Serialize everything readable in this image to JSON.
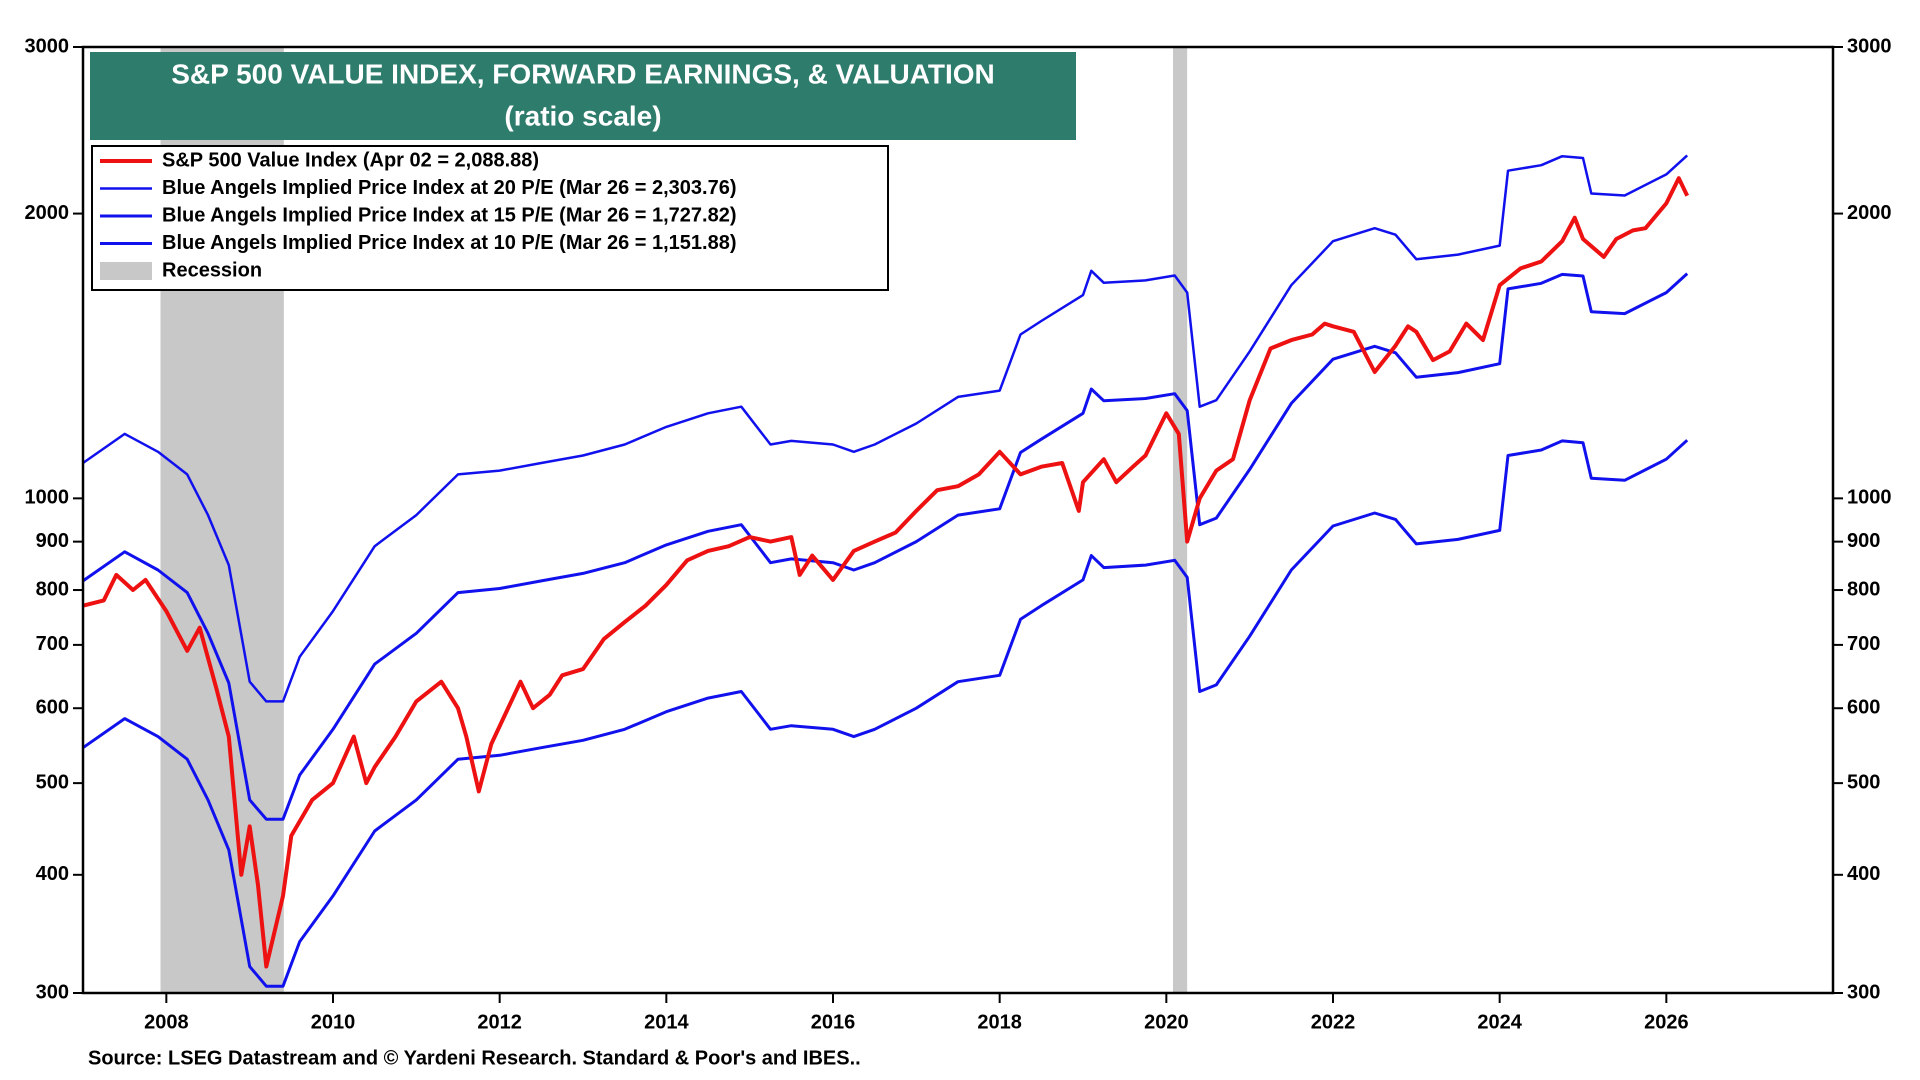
{
  "chart_data": {
    "type": "line",
    "title": "S&P 500 VALUE INDEX, FORWARD EARNINGS, & VALUATION",
    "subtitle": "(ratio scale)",
    "source": "Source: LSEG Datastream and © Yardeni Research. Standard & Poor's and IBES..",
    "log_scale": true,
    "xlim": [
      2007,
      2028
    ],
    "xticks": [
      2008,
      2010,
      2012,
      2014,
      2016,
      2018,
      2020,
      2022,
      2024,
      2026
    ],
    "ylim": [
      300,
      3000
    ],
    "yticks": [
      300,
      400,
      500,
      600,
      700,
      800,
      900,
      1000,
      2000,
      3000
    ],
    "recession": {
      "label": "Recession",
      "color": "#c8c8c8",
      "periods": [
        [
          2007.93,
          2009.41
        ],
        [
          2020.08,
          2020.25
        ]
      ]
    },
    "series": [
      {
        "name": "S&P 500 Value Index (Apr 02 = 2,088.88)",
        "color": "#ee1111",
        "width": 4,
        "x": [
          2007.0,
          2007.25,
          2007.4,
          2007.6,
          2007.75,
          2008.0,
          2008.25,
          2008.4,
          2008.6,
          2008.75,
          2008.9,
          2009.0,
          2009.1,
          2009.2,
          2009.4,
          2009.5,
          2009.75,
          2010.0,
          2010.25,
          2010.4,
          2010.5,
          2010.75,
          2011.0,
          2011.3,
          2011.5,
          2011.6,
          2011.75,
          2011.9,
          2012.25,
          2012.4,
          2012.6,
          2012.75,
          2013.0,
          2013.25,
          2013.5,
          2013.75,
          2014.0,
          2014.25,
          2014.5,
          2014.75,
          2015.0,
          2015.25,
          2015.5,
          2015.6,
          2015.75,
          2016.0,
          2016.25,
          2016.5,
          2016.75,
          2017.0,
          2017.25,
          2017.5,
          2017.75,
          2018.0,
          2018.25,
          2018.5,
          2018.75,
          2018.95,
          2019.0,
          2019.25,
          2019.4,
          2019.6,
          2019.75,
          2020.0,
          2020.15,
          2020.25,
          2020.4,
          2020.6,
          2020.8,
          2021.0,
          2021.25,
          2021.5,
          2021.75,
          2021.9,
          2022.0,
          2022.25,
          2022.5,
          2022.75,
          2022.9,
          2023.0,
          2023.2,
          2023.4,
          2023.6,
          2023.8,
          2024.0,
          2024.25,
          2024.5,
          2024.75,
          2024.9,
          2025.0,
          2025.25,
          2025.4,
          2025.6,
          2025.75,
          2026.0,
          2026.15,
          2026.25
        ],
        "values": [
          770,
          780,
          830,
          800,
          820,
          760,
          690,
          730,
          630,
          560,
          400,
          450,
          390,
          320,
          380,
          440,
          480,
          500,
          560,
          500,
          520,
          560,
          610,
          640,
          600,
          560,
          490,
          550,
          640,
          600,
          620,
          650,
          660,
          710,
          740,
          770,
          810,
          860,
          880,
          890,
          910,
          900,
          910,
          830,
          870,
          820,
          880,
          900,
          920,
          970,
          1020,
          1030,
          1060,
          1120,
          1060,
          1080,
          1090,
          970,
          1040,
          1100,
          1040,
          1080,
          1110,
          1230,
          1170,
          900,
          1000,
          1070,
          1100,
          1270,
          1440,
          1470,
          1490,
          1530,
          1520,
          1500,
          1360,
          1450,
          1520,
          1500,
          1400,
          1430,
          1530,
          1470,
          1680,
          1750,
          1780,
          1870,
          1980,
          1880,
          1800,
          1880,
          1920,
          1930,
          2050,
          2180,
          2089
        ]
      },
      {
        "name": "Blue Angels Implied Price Index at 20 P/E (Mar 26 = 2,303.76)",
        "color": "#1111ee",
        "width": 2.5,
        "x": [
          2007.0,
          2007.5,
          2007.9,
          2008.25,
          2008.5,
          2008.75,
          2009.0,
          2009.2,
          2009.4,
          2009.6,
          2010.0,
          2010.5,
          2011.0,
          2011.5,
          2012.0,
          2012.5,
          2013.0,
          2013.5,
          2014.0,
          2014.5,
          2014.9,
          2015.25,
          2015.5,
          2016.0,
          2016.25,
          2016.5,
          2017.0,
          2017.5,
          2018.0,
          2018.25,
          2018.5,
          2019.0,
          2019.1,
          2019.25,
          2019.75,
          2020.1,
          2020.25,
          2020.4,
          2020.6,
          2021.0,
          2021.5,
          2022.0,
          2022.5,
          2022.75,
          2023.0,
          2023.5,
          2024.0,
          2024.1,
          2024.5,
          2024.75,
          2025.0,
          2025.1,
          2025.5,
          2026.0,
          2026.25
        ],
        "values": [
          1090,
          1170,
          1120,
          1060,
          960,
          850,
          640,
          610,
          610,
          680,
          760,
          890,
          960,
          1060,
          1070,
          1090,
          1110,
          1140,
          1190,
          1230,
          1250,
          1140,
          1150,
          1140,
          1120,
          1140,
          1200,
          1280,
          1300,
          1490,
          1540,
          1640,
          1740,
          1690,
          1700,
          1720,
          1650,
          1250,
          1270,
          1430,
          1680,
          1870,
          1930,
          1900,
          1790,
          1810,
          1850,
          2220,
          2250,
          2300,
          2290,
          2100,
          2090,
          2200,
          2304
        ]
      },
      {
        "name": "Blue Angels Implied Price Index at 15 P/E (Mar 26 = 1,727.82)",
        "color": "#1111ee",
        "width": 3,
        "x": [
          2007.0,
          2007.5,
          2007.9,
          2008.25,
          2008.5,
          2008.75,
          2009.0,
          2009.2,
          2009.4,
          2009.6,
          2010.0,
          2010.5,
          2011.0,
          2011.5,
          2012.0,
          2012.5,
          2013.0,
          2013.5,
          2014.0,
          2014.5,
          2014.9,
          2015.25,
          2015.5,
          2016.0,
          2016.25,
          2016.5,
          2017.0,
          2017.5,
          2018.0,
          2018.25,
          2018.5,
          2019.0,
          2019.1,
          2019.25,
          2019.75,
          2020.1,
          2020.25,
          2020.4,
          2020.6,
          2021.0,
          2021.5,
          2022.0,
          2022.5,
          2022.75,
          2023.0,
          2023.5,
          2024.0,
          2024.1,
          2024.5,
          2024.75,
          2025.0,
          2025.1,
          2025.5,
          2026.0,
          2026.25
        ],
        "values": [
          818,
          878,
          840,
          795,
          720,
          638,
          480,
          458,
          458,
          510,
          570,
          668,
          720,
          795,
          803,
          818,
          833,
          855,
          893,
          923,
          938,
          855,
          863,
          855,
          840,
          855,
          900,
          960,
          975,
          1118,
          1155,
          1230,
          1305,
          1268,
          1275,
          1290,
          1238,
          938,
          953,
          1073,
          1260,
          1403,
          1448,
          1425,
          1343,
          1358,
          1388,
          1665,
          1688,
          1725,
          1718,
          1575,
          1568,
          1650,
          1728
        ]
      },
      {
        "name": "Blue Angels Implied Price Index at 10 P/E (Mar 26 = 1,151.88)",
        "color": "#1111ee",
        "width": 3,
        "x": [
          2007.0,
          2007.5,
          2007.9,
          2008.25,
          2008.5,
          2008.75,
          2009.0,
          2009.2,
          2009.4,
          2009.6,
          2010.0,
          2010.5,
          2011.0,
          2011.5,
          2012.0,
          2012.5,
          2013.0,
          2013.5,
          2014.0,
          2014.5,
          2014.9,
          2015.25,
          2015.5,
          2016.0,
          2016.25,
          2016.5,
          2017.0,
          2017.5,
          2018.0,
          2018.25,
          2018.5,
          2019.0,
          2019.1,
          2019.25,
          2019.75,
          2020.1,
          2020.25,
          2020.4,
          2020.6,
          2021.0,
          2021.5,
          2022.0,
          2022.5,
          2022.75,
          2023.0,
          2023.5,
          2024.0,
          2024.1,
          2024.5,
          2024.75,
          2025.0,
          2025.1,
          2025.5,
          2026.0,
          2026.25
        ],
        "values": [
          545,
          585,
          560,
          530,
          480,
          425,
          320,
          305,
          305,
          340,
          380,
          445,
          480,
          530,
          535,
          545,
          555,
          570,
          595,
          615,
          625,
          570,
          575,
          570,
          560,
          570,
          600,
          640,
          650,
          745,
          770,
          820,
          870,
          845,
          850,
          860,
          825,
          625,
          635,
          715,
          840,
          935,
          965,
          950,
          895,
          905,
          925,
          1110,
          1125,
          1150,
          1145,
          1050,
          1045,
          1100,
          1152
        ]
      }
    ]
  }
}
